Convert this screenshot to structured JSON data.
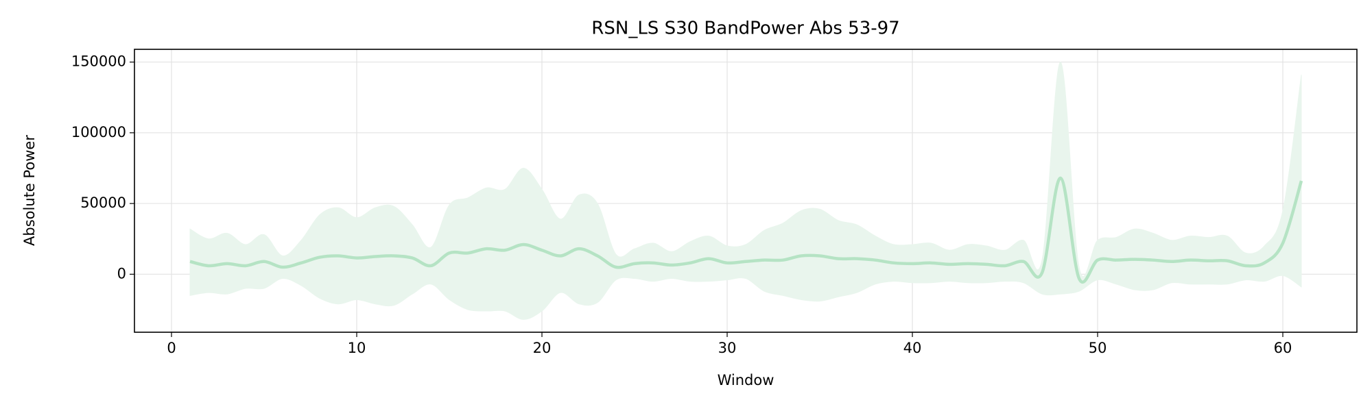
{
  "chart_data": {
    "type": "line_band",
    "title": "RSN_LS S30 BandPower Abs 53-97",
    "x_label": "Window",
    "y_label": "Absolute Power",
    "x": [
      1,
      2,
      3,
      4,
      5,
      6,
      7,
      8,
      9,
      10,
      11,
      12,
      13,
      14,
      15,
      16,
      17,
      18,
      19,
      20,
      21,
      22,
      23,
      24,
      25,
      26,
      27,
      28,
      29,
      30,
      31,
      32,
      33,
      34,
      35,
      36,
      37,
      38,
      39,
      40,
      41,
      42,
      43,
      44,
      45,
      46,
      47,
      48,
      49,
      50,
      51,
      52,
      53,
      54,
      55,
      56,
      57,
      58,
      59,
      60,
      61
    ],
    "values": [
      9000,
      6000,
      7500,
      6000,
      9000,
      5000,
      8000,
      12000,
      13000,
      11500,
      12500,
      13000,
      11500,
      6000,
      15000,
      15000,
      18000,
      17000,
      21000,
      17000,
      13000,
      18000,
      13000,
      5000,
      7500,
      8000,
      6500,
      8000,
      11000,
      8000,
      9000,
      10000,
      10000,
      13000,
      13000,
      11000,
      11000,
      10000,
      8000,
      7500,
      8000,
      7000,
      7500,
      7000,
      6000,
      9000,
      1000,
      68000,
      -3000,
      10000,
      10000,
      10500,
      10000,
      9000,
      10000,
      9500,
      9500,
      6000,
      8000,
      22000,
      66000
    ],
    "band_upper": [
      32000,
      25000,
      29000,
      21000,
      28000,
      13000,
      24000,
      42000,
      47000,
      40000,
      47000,
      48000,
      35000,
      19000,
      49000,
      54000,
      61000,
      60000,
      75000,
      60000,
      39000,
      56000,
      50000,
      14000,
      18000,
      22000,
      16000,
      23000,
      27000,
      20000,
      21000,
      31000,
      36000,
      45000,
      46000,
      38000,
      35000,
      27000,
      21000,
      21000,
      22000,
      17000,
      21000,
      20000,
      17000,
      24000,
      10000,
      150000,
      5000,
      24000,
      26000,
      32000,
      29000,
      24000,
      27000,
      26000,
      27000,
      15000,
      20000,
      45000,
      141000
    ],
    "band_lower": [
      -15000,
      -13000,
      -14000,
      -10000,
      -10000,
      -3000,
      -8000,
      -17000,
      -21000,
      -18000,
      -21000,
      -22000,
      -14000,
      -7000,
      -18000,
      -25000,
      -26000,
      -26000,
      -32000,
      -26000,
      -13000,
      -21000,
      -20000,
      -4000,
      -3000,
      -5000,
      -3000,
      -5000,
      -5000,
      -4000,
      -3000,
      -12000,
      -15000,
      -18000,
      -19000,
      -16000,
      -13000,
      -7000,
      -5000,
      -6000,
      -6000,
      -5000,
      -6000,
      -6000,
      -5000,
      -6000,
      -14000,
      -14000,
      -12000,
      -4000,
      -7000,
      -11000,
      -11000,
      -6000,
      -7000,
      -7000,
      -7000,
      -4000,
      -5000,
      -1000,
      -9000
    ],
    "color": "#b5e3c4",
    "band_color": "#e9f5ed",
    "xlim": [
      -2,
      64
    ],
    "ylim": [
      -41000,
      159000
    ],
    "xticks": [
      0,
      10,
      20,
      30,
      40,
      50,
      60
    ],
    "yticks": [
      0,
      50000,
      100000,
      150000
    ],
    "grid": true
  }
}
